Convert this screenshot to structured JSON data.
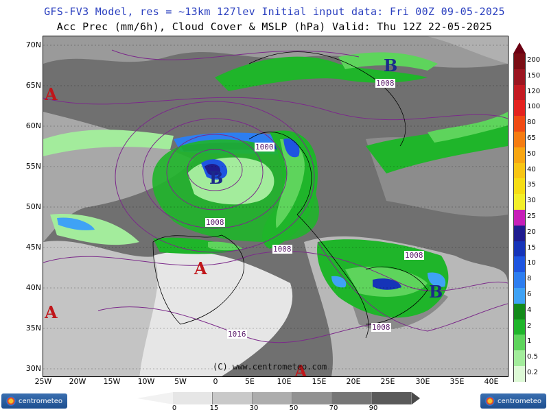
{
  "header": {
    "line1": "GFS-FV3 Model, res = ~13km 127lev   Initial input data: Fri 00Z 09-05-2025",
    "line2": "Acc Prec (mm/6h), Cloud Cover & MSLP (hPa)  Valid: Thu 12Z 22-05-2025"
  },
  "lat_labels": [
    "70N",
    "65N",
    "60N",
    "55N",
    "50N",
    "45N",
    "40N",
    "35N",
    "30N"
  ],
  "lon_labels": [
    "25W",
    "20W",
    "15W",
    "10W",
    "5W",
    "0",
    "5E",
    "10E",
    "15E",
    "20E",
    "25E",
    "30E",
    "35E",
    "40E"
  ],
  "pressure_centers": [
    {
      "letter": "A",
      "color": "#c0161a"
    },
    {
      "letter": "A",
      "color": "#c0161a"
    },
    {
      "letter": "A",
      "color": "#c0161a"
    },
    {
      "letter": "A",
      "color": "#c0161a"
    },
    {
      "letter": "B",
      "color": "#1b2a8a"
    },
    {
      "letter": "B",
      "color": "#1b2a8a"
    },
    {
      "letter": "B",
      "color": "#1b2a8a"
    }
  ],
  "isobar_labels": [
    "1008",
    "1000",
    "1008",
    "1008",
    "1008",
    "1008",
    "1016"
  ],
  "precip_scale": {
    "labels": [
      "200",
      "150",
      "120",
      "100",
      "80",
      "65",
      "50",
      "40",
      "35",
      "30",
      "25",
      "20",
      "15",
      "10",
      "8",
      "6",
      "4",
      "2",
      "1",
      "0.5",
      "0.2"
    ],
    "colors": [
      "#7a0d14",
      "#9b1520",
      "#c41a22",
      "#e4231f",
      "#f04a14",
      "#f57c12",
      "#f8a612",
      "#f8c513",
      "#f6dd15",
      "#f3ef2a",
      "#c71fb8",
      "#1f1c8f",
      "#1634b8",
      "#1e55e0",
      "#2d7ef0",
      "#3fa2f5",
      "#138a1a",
      "#1fb52a",
      "#5ed45c",
      "#a3ec9c",
      "#ddf9d6"
    ]
  },
  "cloud_scale": {
    "labels": [
      "0",
      "15",
      "30",
      "50",
      "70",
      "90"
    ],
    "colors": [
      "#e6e6e6",
      "#c9c9c9",
      "#adadad",
      "#929292",
      "#767676",
      "#5a5a5a"
    ]
  },
  "copyright": "(C) www.centrometeo.com",
  "logo_text": "centrometeo"
}
